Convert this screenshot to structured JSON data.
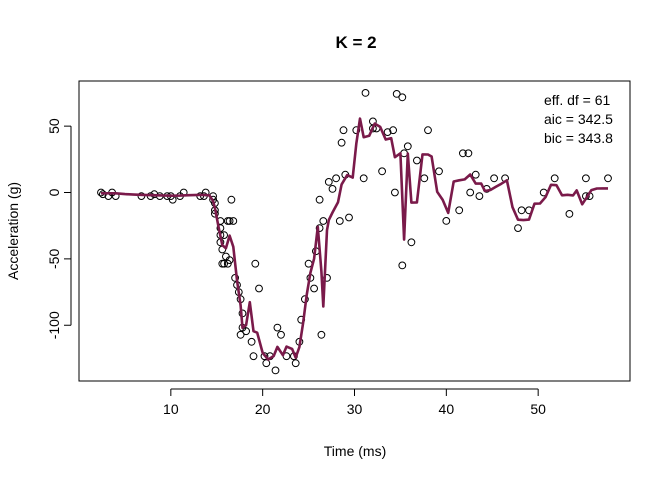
{
  "chart_data": {
    "type": "scatter",
    "title": "K =  2",
    "xlabel": "Time (ms)",
    "ylabel": "Acceleration (g)",
    "xlim": [
      0,
      60
    ],
    "ylim": [
      -142,
      84
    ],
    "x_ticks": [
      10,
      20,
      30,
      40,
      50
    ],
    "y_ticks": [
      -100,
      -50,
      0,
      50
    ],
    "grid": false,
    "colors": {
      "points": "#000000",
      "fit": "#7a1a4a"
    },
    "annotations": [
      "eff. df = 61",
      "aic = 342.5",
      "bic = 343.8"
    ],
    "series": [
      {
        "type": "scatter",
        "points": [
          [
            2.4,
            0.0
          ],
          [
            2.6,
            -1.3
          ],
          [
            3.2,
            -2.7
          ],
          [
            3.6,
            0.0
          ],
          [
            4.0,
            -2.7
          ],
          [
            6.8,
            -2.7
          ],
          [
            7.8,
            -2.7
          ],
          [
            8.2,
            -1.3
          ],
          [
            8.8,
            -2.7
          ],
          [
            9.6,
            -2.7
          ],
          [
            10.0,
            -2.7
          ],
          [
            10.2,
            -5.4
          ],
          [
            11.0,
            -2.7
          ],
          [
            11.4,
            0.0
          ],
          [
            13.2,
            -2.7
          ],
          [
            13.6,
            -2.7
          ],
          [
            13.8,
            0.0
          ],
          [
            14.6,
            -2.7
          ],
          [
            14.6,
            -5.4
          ],
          [
            14.8,
            -8.0
          ],
          [
            14.8,
            -13.4
          ],
          [
            14.8,
            -16.0
          ],
          [
            15.4,
            -21.5
          ],
          [
            15.4,
            -26.8
          ],
          [
            15.4,
            -32.1
          ],
          [
            15.4,
            -37.5
          ],
          [
            15.6,
            -42.9
          ],
          [
            15.6,
            -53.6
          ],
          [
            15.8,
            -32.1
          ],
          [
            15.8,
            -53.6
          ],
          [
            16.0,
            -48.2
          ],
          [
            16.2,
            -21.5
          ],
          [
            16.2,
            -53.6
          ],
          [
            16.4,
            -21.5
          ],
          [
            16.4,
            -50.9
          ],
          [
            16.6,
            -5.4
          ],
          [
            16.8,
            -21.5
          ],
          [
            17.0,
            -64.3
          ],
          [
            17.2,
            -69.7
          ],
          [
            17.4,
            -75.0
          ],
          [
            17.6,
            -80.4
          ],
          [
            17.6,
            -107.2
          ],
          [
            17.8,
            -91.1
          ],
          [
            17.8,
            -101.8
          ],
          [
            18.2,
            -104.5
          ],
          [
            18.8,
            -112.5
          ],
          [
            19.0,
            -123.3
          ],
          [
            19.2,
            -53.6
          ],
          [
            19.6,
            -72.3
          ],
          [
            20.2,
            -123.3
          ],
          [
            20.4,
            -128.6
          ],
          [
            20.8,
            -123.3
          ],
          [
            21.4,
            -134.0
          ],
          [
            21.6,
            -101.8
          ],
          [
            22.0,
            -107.2
          ],
          [
            22.6,
            -123.3
          ],
          [
            23.4,
            -123.3
          ],
          [
            23.6,
            -128.6
          ],
          [
            24.0,
            -112.5
          ],
          [
            24.2,
            -95.8
          ],
          [
            24.6,
            -80.4
          ],
          [
            25.0,
            -53.6
          ],
          [
            25.2,
            -64.3
          ],
          [
            25.6,
            -72.3
          ],
          [
            25.8,
            -44.2
          ],
          [
            26.2,
            -5.4
          ],
          [
            26.2,
            -26.8
          ],
          [
            26.4,
            -107.2
          ],
          [
            26.6,
            -21.5
          ],
          [
            27.0,
            -64.3
          ],
          [
            27.2,
            8.0
          ],
          [
            27.6,
            2.7
          ],
          [
            28.0,
            10.7
          ],
          [
            28.4,
            -21.5
          ],
          [
            28.6,
            37.5
          ],
          [
            28.8,
            46.9
          ],
          [
            29.0,
            13.4
          ],
          [
            29.4,
            -18.8
          ],
          [
            30.2,
            46.9
          ],
          [
            31.0,
            10.7
          ],
          [
            31.2,
            75.0
          ],
          [
            32.0,
            53.6
          ],
          [
            32.0,
            48.2
          ],
          [
            32.4,
            48.2
          ],
          [
            33.0,
            16.0
          ],
          [
            33.6,
            45.5
          ],
          [
            34.2,
            46.9
          ],
          [
            34.4,
            0.0
          ],
          [
            34.6,
            74.3
          ],
          [
            35.2,
            71.7
          ],
          [
            35.2,
            -54.9
          ],
          [
            35.4,
            29.5
          ],
          [
            35.8,
            34.8
          ],
          [
            36.2,
            -37.5
          ],
          [
            36.8,
            24.1
          ],
          [
            37.6,
            10.7
          ],
          [
            38.0,
            46.9
          ],
          [
            39.2,
            16.0
          ],
          [
            40.0,
            -21.4
          ],
          [
            41.4,
            -13.4
          ],
          [
            41.8,
            29.5
          ],
          [
            42.4,
            29.5
          ],
          [
            42.6,
            0.0
          ],
          [
            43.2,
            13.4
          ],
          [
            43.6,
            -2.7
          ],
          [
            44.4,
            2.7
          ],
          [
            45.2,
            10.7
          ],
          [
            46.4,
            10.7
          ],
          [
            47.8,
            -26.8
          ],
          [
            48.2,
            -13.4
          ],
          [
            49.0,
            -13.4
          ],
          [
            50.6,
            0.0
          ],
          [
            51.8,
            10.7
          ],
          [
            53.4,
            -16.1
          ],
          [
            55.2,
            10.7
          ],
          [
            55.2,
            -2.7
          ],
          [
            55.6,
            -2.7
          ],
          [
            57.6,
            10.7
          ]
        ]
      },
      {
        "type": "line",
        "points": [
          [
            2.4,
            -0.6
          ],
          [
            3.2,
            -0.6
          ],
          [
            4.0,
            -0.6
          ],
          [
            5.0,
            -1.2
          ],
          [
            6.0,
            -1.6
          ],
          [
            7.0,
            -1.8
          ],
          [
            8.0,
            -2.0
          ],
          [
            9.0,
            -2.2
          ],
          [
            10.0,
            -2.4
          ],
          [
            11.0,
            -2.3
          ],
          [
            12.0,
            -2.0
          ],
          [
            13.0,
            -1.8
          ],
          [
            13.8,
            -1.9
          ],
          [
            14.2,
            -2.2
          ],
          [
            14.6,
            -6.5
          ],
          [
            14.8,
            -11.6
          ],
          [
            15.2,
            -26.1
          ],
          [
            15.6,
            -39.6
          ],
          [
            16.0,
            -42.0
          ],
          [
            16.4,
            -32.5
          ],
          [
            16.8,
            -40.9
          ],
          [
            17.2,
            -66.1
          ],
          [
            17.6,
            -85.0
          ],
          [
            17.8,
            -102.0
          ],
          [
            18.2,
            -99.9
          ],
          [
            18.6,
            -82.6
          ],
          [
            19.0,
            -104.5
          ],
          [
            19.4,
            -105.6
          ],
          [
            20.0,
            -120.9
          ],
          [
            20.6,
            -125.8
          ],
          [
            21.2,
            -123.2
          ],
          [
            21.6,
            -116.3
          ],
          [
            22.2,
            -122.6
          ],
          [
            22.6,
            -116.1
          ],
          [
            23.2,
            -117.8
          ],
          [
            23.6,
            -124.4
          ],
          [
            24.0,
            -116.4
          ],
          [
            24.4,
            -98.4
          ],
          [
            24.8,
            -77.2
          ],
          [
            25.2,
            -60.5
          ],
          [
            25.6,
            -49.9
          ],
          [
            26.0,
            -25.8
          ],
          [
            26.4,
            -59.4
          ],
          [
            26.6,
            -85.9
          ],
          [
            27.0,
            -28.4
          ],
          [
            27.2,
            -20.8
          ],
          [
            27.6,
            -15.1
          ],
          [
            28.2,
            -7.4
          ],
          [
            28.6,
            6.1
          ],
          [
            29.2,
            13.1
          ],
          [
            29.8,
            11.2
          ],
          [
            30.2,
            36.8
          ],
          [
            30.6,
            55.7
          ],
          [
            31.0,
            41.7
          ],
          [
            31.6,
            42.7
          ],
          [
            32.2,
            51.9
          ],
          [
            32.8,
            49.4
          ],
          [
            33.4,
            39.9
          ],
          [
            34.0,
            40.9
          ],
          [
            34.4,
            26.6
          ],
          [
            35.0,
            29.5
          ],
          [
            35.4,
            -35.5
          ],
          [
            35.8,
            29.4
          ],
          [
            36.2,
            -7.6
          ],
          [
            36.8,
            -7.5
          ],
          [
            37.4,
            28.7
          ],
          [
            38.0,
            28.6
          ],
          [
            38.4,
            27.1
          ],
          [
            39.0,
            0.5
          ],
          [
            39.6,
            -5.6
          ],
          [
            40.2,
            -15.4
          ],
          [
            40.8,
            8.3
          ],
          [
            41.4,
            9.2
          ],
          [
            42.0,
            9.9
          ],
          [
            42.6,
            13.6
          ],
          [
            43.2,
            6.7
          ],
          [
            43.8,
            6.7
          ],
          [
            44.2,
            1.1
          ],
          [
            44.8,
            1.9
          ],
          [
            45.4,
            4.3
          ],
          [
            46.0,
            6.6
          ],
          [
            46.6,
            9.2
          ],
          [
            47.2,
            -11.1
          ],
          [
            47.8,
            -20.5
          ],
          [
            48.4,
            -20.8
          ],
          [
            49.0,
            -20.4
          ],
          [
            49.6,
            -8.4
          ],
          [
            50.2,
            -8.3
          ],
          [
            50.8,
            -3.5
          ],
          [
            51.4,
            5.8
          ],
          [
            52.0,
            5.5
          ],
          [
            52.6,
            -2.1
          ],
          [
            53.2,
            -1.7
          ],
          [
            53.8,
            -2.2
          ],
          [
            54.2,
            1.6
          ],
          [
            54.8,
            -8.9
          ],
          [
            55.2,
            -4.7
          ],
          [
            55.8,
            1.8
          ],
          [
            56.4,
            3.0
          ],
          [
            57.0,
            3.1
          ],
          [
            57.6,
            3.1
          ]
        ]
      }
    ]
  }
}
